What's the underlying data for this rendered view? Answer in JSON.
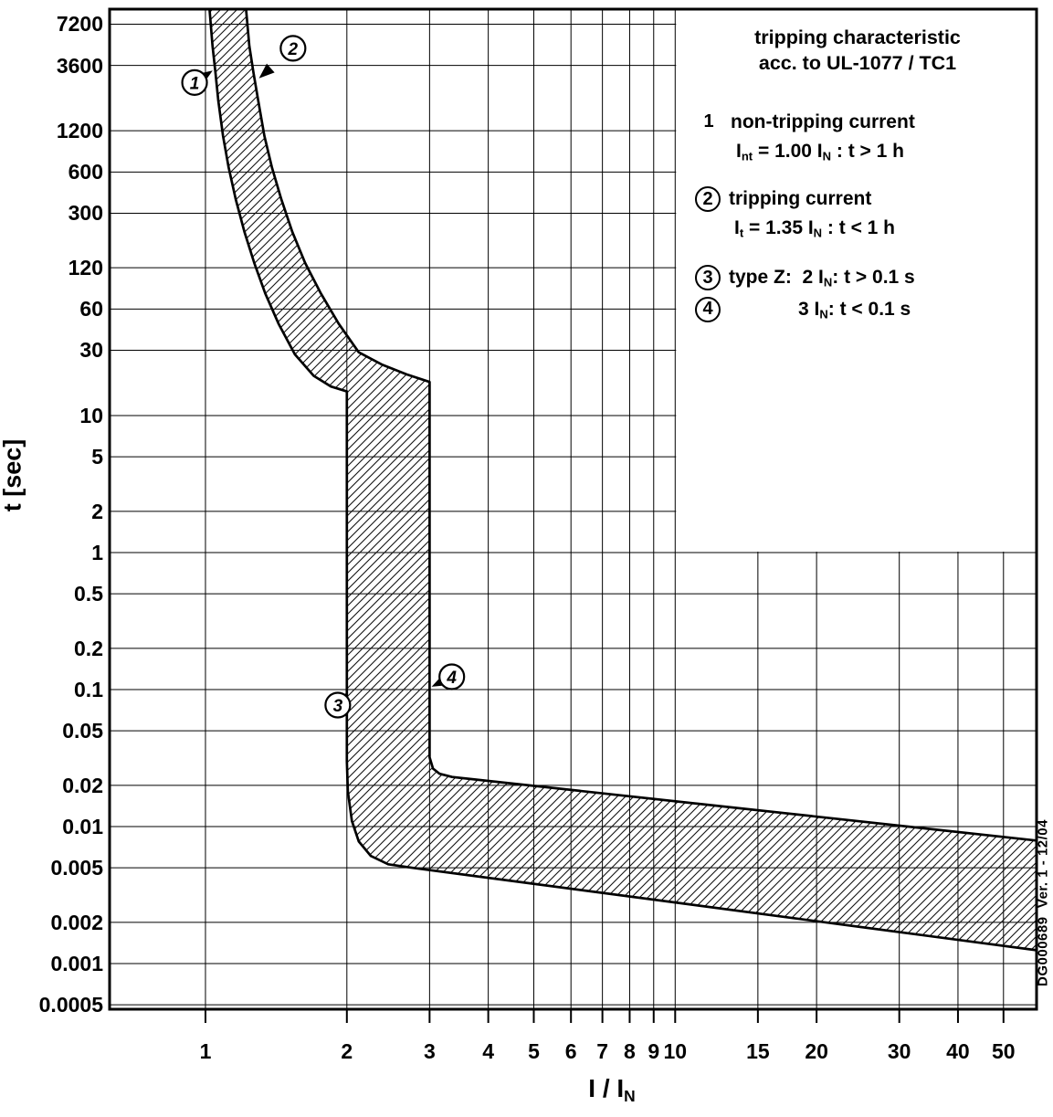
{
  "chart_data": {
    "type": "area",
    "title": "tripping characteristic acc. to UL-1077 / TC1",
    "x_scale": "log",
    "y_scale": "log",
    "xlabel": "I / I~N~",
    "ylabel": "t [sec]",
    "xlim": [
      0.625,
      58.8
    ],
    "ylim": [
      0.000464,
      9270
    ],
    "grid": true,
    "legend_position": "upper-right",
    "band_style": "diagonal-hatch",
    "x_ticks": [
      "1",
      "2",
      "3",
      "4",
      "5",
      "6",
      "7",
      "8",
      "9",
      "10",
      "15",
      "20",
      "30",
      "40",
      "50"
    ],
    "y_ticks": [
      "7200",
      "3600",
      "1200",
      "600",
      "300",
      "120",
      "60",
      "30",
      "10",
      "5",
      "2",
      "1",
      "0.5",
      "0.2",
      "0.1",
      "0.05",
      "0.02",
      "0.01",
      "0.005",
      "0.002",
      "0.001",
      "0.0005"
    ],
    "series": [
      {
        "name": "non-tripping boundary (lower/left edge of band)",
        "points": [
          [
            1.02,
            9300
          ],
          [
            1.035,
            5000
          ],
          [
            1.05,
            3200
          ],
          [
            1.065,
            2000
          ],
          [
            1.09,
            1100
          ],
          [
            1.12,
            650
          ],
          [
            1.16,
            380
          ],
          [
            1.21,
            220
          ],
          [
            1.27,
            130
          ],
          [
            1.34,
            78
          ],
          [
            1.43,
            47
          ],
          [
            1.55,
            28
          ],
          [
            1.7,
            19.5
          ],
          [
            1.85,
            16.3
          ],
          [
            2.0,
            15
          ],
          [
            2.0,
            0.03
          ],
          [
            2.01,
            0.018
          ],
          [
            2.05,
            0.011
          ],
          [
            2.12,
            0.0078
          ],
          [
            2.25,
            0.0061
          ],
          [
            2.45,
            0.0053
          ],
          [
            2.75,
            0.005
          ],
          [
            58.8,
            0.00125
          ]
        ]
      },
      {
        "name": "tripping boundary (upper/right edge of band)",
        "points": [
          [
            1.22,
            9300
          ],
          [
            1.24,
            5000
          ],
          [
            1.265,
            3200
          ],
          [
            1.295,
            2000
          ],
          [
            1.335,
            1100
          ],
          [
            1.385,
            650
          ],
          [
            1.45,
            380
          ],
          [
            1.53,
            220
          ],
          [
            1.63,
            130
          ],
          [
            1.76,
            78
          ],
          [
            1.92,
            47
          ],
          [
            2.12,
            29
          ],
          [
            2.38,
            23.5
          ],
          [
            2.68,
            20
          ],
          [
            3.0,
            17.6
          ],
          [
            3.0,
            0.032
          ],
          [
            3.05,
            0.0265
          ],
          [
            3.15,
            0.0243
          ],
          [
            3.35,
            0.023
          ],
          [
            58.8,
            0.0079
          ]
        ]
      }
    ],
    "annotations": [
      {
        "label": "1",
        "circle": [
          0.948,
          2700
        ],
        "tip": [
          1.036,
          3300
        ]
      },
      {
        "label": "2",
        "circle": [
          1.536,
          4800
        ],
        "tip": [
          1.3,
          2900
        ]
      },
      {
        "label": "3",
        "circle": [
          1.913,
          0.077
        ],
        "tip": [
          2.0,
          0.095
        ]
      },
      {
        "label": "4",
        "circle": [
          3.345,
          0.124
        ],
        "tip": [
          3.03,
          0.105
        ]
      }
    ],
    "colors": {
      "curve": "#000000",
      "grid": "#000000",
      "background": "#ffffff"
    }
  },
  "legend": {
    "title_lines": [
      "tripping characteristic",
      "acc. to UL-1077 / TC1"
    ],
    "items": [
      {
        "marker": "1",
        "circled": false,
        "lines": [
          "non-tripping current",
          "I~nt~ = 1.00 I~N~ : t > 1 h"
        ]
      },
      {
        "marker": "2",
        "circled": true,
        "lines": [
          "tripping current",
          "I~t~ = 1.35 I~N~ : t < 1 h"
        ]
      },
      {
        "marker": "3",
        "circled": true,
        "lines": [
          "type Z:  2 I~N~: t > 0.1 s"
        ]
      },
      {
        "marker": "4",
        "circled": true,
        "lines": [
          "3 I~N~: t < 0.1 s"
        ],
        "indent": true
      }
    ]
  },
  "side_note": "DG000689  Ver. 1 - 12/04"
}
